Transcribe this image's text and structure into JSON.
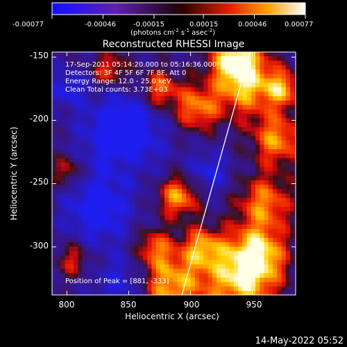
{
  "colorbar": {
    "ticks": [
      "-0.00077",
      "-0.00046",
      "-0.00015",
      "0.00015",
      "0.00046",
      "0.00077"
    ],
    "units_line": "(photons cm",
    "units_sup1": "-2",
    "units_mid1": " s",
    "units_sup2": "-1",
    "units_mid2": " asec",
    "units_sup3": "-2",
    "units_end": ")"
  },
  "image": {
    "title": "Reconstructed RHESSI Image",
    "info_lines": [
      "17-Sep-2011 05:14:20.000 to 05:16:36.000",
      "Detectors: 3F 4F 5F 6F 7F 8F, Att 0",
      "Energy Range: 12.0 - 25.0 keV",
      "Clean     Total counts: 3.73E+03"
    ],
    "peak_text": "Position of Peak = [881, -333]"
  },
  "chart_data": {
    "type": "heatmap",
    "title": "Reconstructed RHESSI Image",
    "xlabel": "Heliocentric X (arcsec)",
    "ylabel": "Heliocentric Y (arcsec)",
    "xlim": [
      788,
      985
    ],
    "ylim": [
      -338,
      -146
    ],
    "xticks": [
      800,
      850,
      900,
      950
    ],
    "yticks": [
      -150,
      -200,
      -250,
      -300
    ],
    "colorbar_range": [
      -0.00077,
      0.00077
    ],
    "colorbar_ticks": [
      -0.00077,
      -0.00046,
      -0.00015,
      0.00015,
      0.00046,
      0.00077
    ],
    "units": "photons cm-2 s-1 asec-2",
    "peak": [
      881,
      -333
    ],
    "limb_line": {
      "x": [
        893,
        948
      ],
      "y": [
        -338,
        -146
      ]
    },
    "colors": {
      "negative": "#2020ff",
      "zero": "#000000",
      "positive": "#ffffff"
    }
  },
  "footer": {
    "timestamp": "14-May-2022 05:52"
  }
}
